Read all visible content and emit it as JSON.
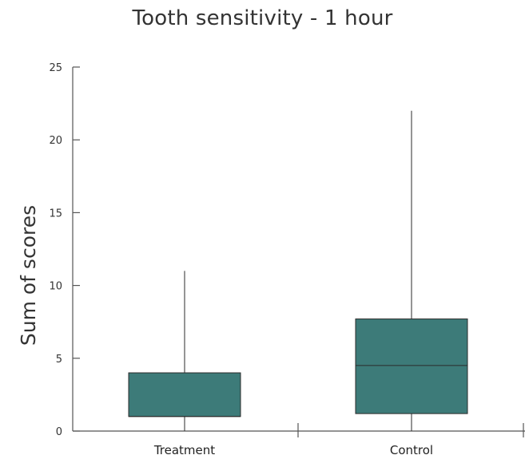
{
  "chart_data": {
    "type": "boxplot",
    "title": "Tooth sensitivity - 1 hour",
    "xlabel": "",
    "ylabel": "Sum of scores",
    "ylim": [
      0,
      25
    ],
    "yticks": [
      0,
      5,
      10,
      15,
      20,
      25
    ],
    "grid": false,
    "legend": "none",
    "categories": [
      "Treatment",
      "Control"
    ],
    "boxes": [
      {
        "category": "Treatment",
        "min": 0,
        "q1": 1,
        "median": 1,
        "q3": 4,
        "max": 11
      },
      {
        "category": "Control",
        "min": 0,
        "q1": 1.2,
        "median": 4.5,
        "q3": 7.7,
        "max": 22
      }
    ],
    "colors": {
      "box_fill": "#3d7b79",
      "box_stroke": "#2b2b2b",
      "axis": "#555555"
    }
  }
}
